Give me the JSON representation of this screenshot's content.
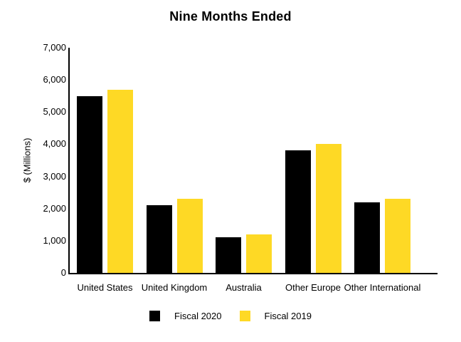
{
  "chart_data": {
    "type": "bar",
    "title": "Nine Months Ended",
    "ylabel": "$ (Millions)",
    "xlabel": "",
    "ylim": [
      0,
      7000
    ],
    "ytick_step": 1000,
    "ytick_labels": [
      "0",
      "1,000",
      "2,000",
      "3,000",
      "4,000",
      "5,000",
      "6,000",
      "7,000"
    ],
    "grid": false,
    "legend_position": "bottom",
    "background_color": "#FFFFFF",
    "axis_color": "#000000",
    "categories": [
      "United States",
      "United Kingdom",
      "Australia",
      "Other Europe",
      "Other International"
    ],
    "series": [
      {
        "name": "Fiscal 2020",
        "color": "#000000",
        "values": [
          5500,
          2100,
          1100,
          3800,
          2200
        ]
      },
      {
        "name": "Fiscal 2019",
        "color": "#FED925",
        "values": [
          5700,
          2300,
          1200,
          4000,
          2300
        ]
      }
    ]
  }
}
